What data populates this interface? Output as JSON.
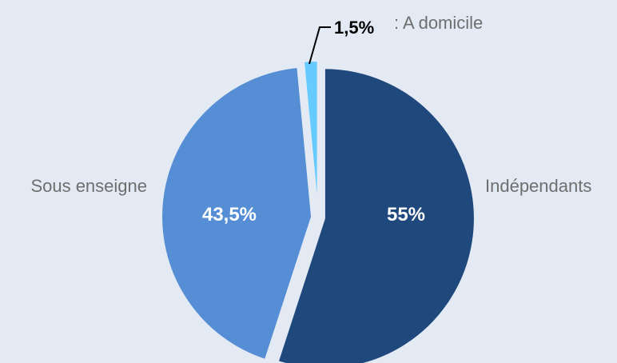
{
  "chart_data": {
    "type": "pie",
    "title": "",
    "slices": [
      {
        "category": "Indépendants",
        "value": 55,
        "label": "55%",
        "color": "#1f497d"
      },
      {
        "category": "Sous enseigne",
        "value": 43.5,
        "label": "43,5%",
        "color": "#558ed5"
      },
      {
        "category": "A domicile",
        "value": 1.5,
        "label": "1,5%",
        "color": "#66ccff"
      }
    ],
    "callout": {
      "value_label": "1,5%",
      "text": ": A domicile"
    },
    "legend": "none",
    "colors": {
      "background": "#e3eaf4"
    }
  }
}
